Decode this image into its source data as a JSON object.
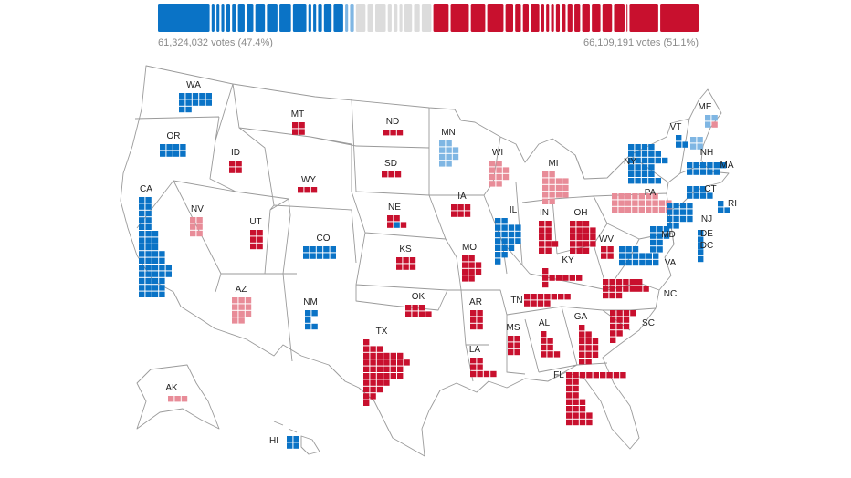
{
  "colors": {
    "dem": "#0a73c6",
    "dem_light": "#7fb6e3",
    "rep": "#c8102e",
    "rep_light": "#e88c98",
    "tossup": "#dcdcdc",
    "outline": "#9a9a9a"
  },
  "summary": {
    "dem_votes_label": "61,324,032 votes (47.4%)",
    "rep_votes_label": "66,109,191 votes (51.1%)"
  },
  "bar_segments": [
    {
      "color": "dem",
      "ev": 54
    },
    {
      "color": "dem",
      "ev": 3
    },
    {
      "color": "dem",
      "ev": 3
    },
    {
      "color": "dem",
      "ev": 3
    },
    {
      "color": "dem",
      "ev": 4
    },
    {
      "color": "dem",
      "ev": 4
    },
    {
      "color": "dem",
      "ev": 7
    },
    {
      "color": "dem",
      "ev": 7
    },
    {
      "color": "dem",
      "ev": 10
    },
    {
      "color": "dem",
      "ev": 11
    },
    {
      "color": "dem",
      "ev": 12
    },
    {
      "color": "dem",
      "ev": 14
    },
    {
      "color": "dem",
      "ev": 3
    },
    {
      "color": "dem",
      "ev": 3
    },
    {
      "color": "dem",
      "ev": 4
    },
    {
      "color": "dem",
      "ev": 8
    },
    {
      "color": "dem",
      "ev": 10
    },
    {
      "color": "dem_light",
      "ev": 3
    },
    {
      "color": "dem_light",
      "ev": 4
    },
    {
      "color": "tossup",
      "ev": 10
    },
    {
      "color": "tossup",
      "ev": 6
    },
    {
      "color": "tossup",
      "ev": 11
    },
    {
      "color": "tossup",
      "ev": 4
    },
    {
      "color": "tossup",
      "ev": 4
    },
    {
      "color": "tossup",
      "ev": 3
    },
    {
      "color": "tossup",
      "ev": 8
    },
    {
      "color": "tossup",
      "ev": 6
    },
    {
      "color": "tossup",
      "ev": 10
    },
    {
      "color": "rep",
      "ev": 16
    },
    {
      "color": "rep",
      "ev": 19
    },
    {
      "color": "rep",
      "ev": 15
    },
    {
      "color": "rep",
      "ev": 17
    },
    {
      "color": "rep",
      "ev": 8
    },
    {
      "color": "rep",
      "ev": 6
    },
    {
      "color": "rep",
      "ev": 6
    },
    {
      "color": "rep",
      "ev": 9
    },
    {
      "color": "rep",
      "ev": 3
    },
    {
      "color": "rep",
      "ev": 3
    },
    {
      "color": "rep",
      "ev": 3
    },
    {
      "color": "rep",
      "ev": 4
    },
    {
      "color": "rep",
      "ev": 4
    },
    {
      "color": "rep",
      "ev": 5
    },
    {
      "color": "rep",
      "ev": 6
    },
    {
      "color": "rep",
      "ev": 8
    },
    {
      "color": "rep",
      "ev": 9
    },
    {
      "color": "rep",
      "ev": 10
    },
    {
      "color": "rep",
      "ev": 11
    },
    {
      "color": "rep",
      "ev": 1
    },
    {
      "color": "rep",
      "ev": 30
    },
    {
      "color": "rep",
      "ev": 40
    }
  ],
  "states": [
    {
      "code": "WA",
      "color": "dem"
    },
    {
      "code": "OR",
      "color": "dem"
    },
    {
      "code": "CA",
      "color": "dem"
    },
    {
      "code": "NV",
      "color": "rep_light"
    },
    {
      "code": "ID",
      "color": "rep"
    },
    {
      "code": "MT",
      "color": "rep"
    },
    {
      "code": "WY",
      "color": "rep"
    },
    {
      "code": "UT",
      "color": "rep"
    },
    {
      "code": "AZ",
      "color": "rep_light"
    },
    {
      "code": "CO",
      "color": "dem"
    },
    {
      "code": "NM",
      "color": "dem"
    },
    {
      "code": "ND",
      "color": "rep"
    },
    {
      "code": "SD",
      "color": "rep"
    },
    {
      "code": "NE",
      "color": "rep"
    },
    {
      "code": "KS",
      "color": "rep"
    },
    {
      "code": "OK",
      "color": "rep"
    },
    {
      "code": "TX",
      "color": "rep"
    },
    {
      "code": "MN",
      "color": "dem_light"
    },
    {
      "code": "IA",
      "color": "rep"
    },
    {
      "code": "MO",
      "color": "rep"
    },
    {
      "code": "AR",
      "color": "rep"
    },
    {
      "code": "LA",
      "color": "rep"
    },
    {
      "code": "WI",
      "color": "rep_light"
    },
    {
      "code": "IL",
      "color": "dem"
    },
    {
      "code": "MI",
      "color": "rep_light"
    },
    {
      "code": "IN",
      "color": "rep"
    },
    {
      "code": "OH",
      "color": "rep"
    },
    {
      "code": "KY",
      "color": "rep"
    },
    {
      "code": "TN",
      "color": "rep"
    },
    {
      "code": "MS",
      "color": "rep"
    },
    {
      "code": "AL",
      "color": "rep"
    },
    {
      "code": "GA",
      "color": "rep"
    },
    {
      "code": "FL",
      "color": "rep"
    },
    {
      "code": "SC",
      "color": "rep"
    },
    {
      "code": "NC",
      "color": "rep"
    },
    {
      "code": "VA",
      "color": "dem"
    },
    {
      "code": "WV",
      "color": "rep"
    },
    {
      "code": "MD",
      "color": "dem"
    },
    {
      "code": "DE",
      "color": "dem"
    },
    {
      "code": "DC",
      "color": "dem"
    },
    {
      "code": "PA",
      "color": "rep_light"
    },
    {
      "code": "NY",
      "color": "dem"
    },
    {
      "code": "NJ",
      "color": "dem"
    },
    {
      "code": "CT",
      "color": "dem"
    },
    {
      "code": "RI",
      "color": "dem"
    },
    {
      "code": "MA",
      "color": "dem"
    },
    {
      "code": "VT",
      "color": "dem"
    },
    {
      "code": "NH",
      "color": "dem_light"
    },
    {
      "code": "ME",
      "color": "dem_light"
    },
    {
      "code": "AK",
      "color": "rep_light"
    },
    {
      "code": "HI",
      "color": "dem"
    }
  ]
}
